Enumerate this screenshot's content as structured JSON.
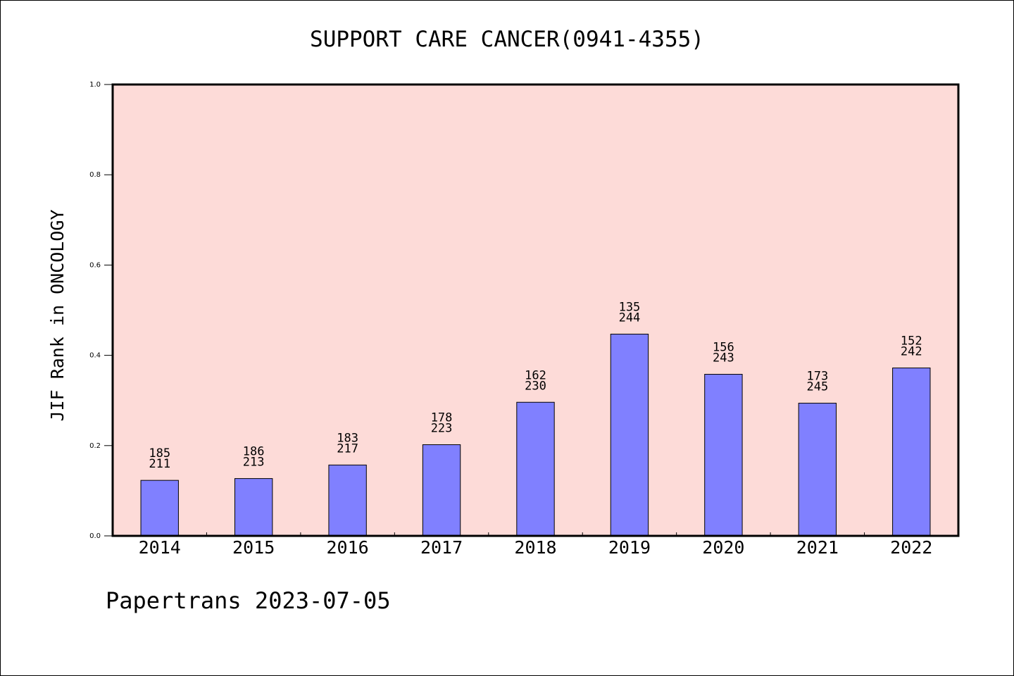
{
  "chart_data": {
    "type": "bar",
    "title": "SUPPORT CARE CANCER(0941-4355)",
    "xlabel": "",
    "ylabel": "JIF Rank in ONCOLOGY",
    "ylim": [
      0,
      1.0
    ],
    "yticks": [
      "0.0",
      "0.2",
      "0.4",
      "0.6",
      "0.8",
      "1.0"
    ],
    "categories": [
      "2014",
      "2015",
      "2016",
      "2017",
      "2018",
      "2019",
      "2020",
      "2021",
      "2022"
    ],
    "values": [
      0.123,
      0.127,
      0.157,
      0.202,
      0.296,
      0.447,
      0.358,
      0.294,
      0.372
    ],
    "rank": [
      "185",
      "186",
      "183",
      "178",
      "162",
      "135",
      "156",
      "173",
      "152"
    ],
    "total": [
      "211",
      "213",
      "217",
      "223",
      "230",
      "244",
      "243",
      "245",
      "242"
    ],
    "grid": false,
    "colors": {
      "plot_bg": "#fddbd8",
      "bar": "#8080ff",
      "bar_edge": "#000000"
    }
  },
  "footer": "Papertrans 2023-07-05"
}
